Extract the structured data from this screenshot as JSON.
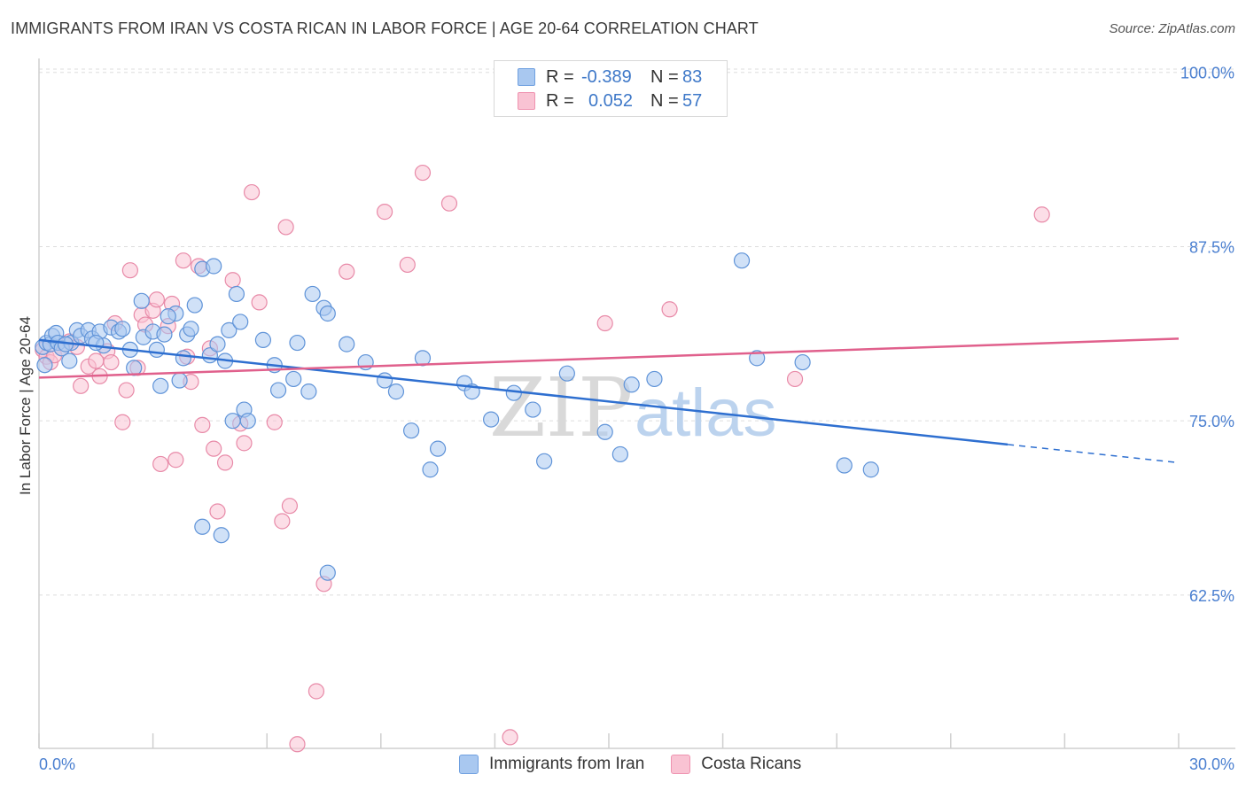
{
  "header": {
    "title": "IMMIGRANTS FROM IRAN VS COSTA RICAN IN LABOR FORCE | AGE 20-64 CORRELATION CHART",
    "source": "Source: ZipAtlas.com"
  },
  "legend_top": {
    "rows": [
      {
        "r_label": "R =",
        "r_value": "-0.389",
        "n_label": "N =",
        "n_value": "83",
        "color": "#a9c8f0",
        "border": "#6fa0e0"
      },
      {
        "r_label": "R =",
        "r_value": "0.052",
        "n_label": "N =",
        "n_value": "57",
        "color": "#f9c3d3",
        "border": "#ef93b0"
      }
    ]
  },
  "watermark": {
    "zip": "ZIP",
    "atlas": "atlas"
  },
  "colors": {
    "blue_fill": "#a9c8f0",
    "blue_edge": "#5f93d8",
    "blue_line": "#2e6fd0",
    "pink_fill": "#f9c3d3",
    "pink_edge": "#e88aa8",
    "pink_line": "#e0608c",
    "tick_text": "#4a7fd0",
    "grid": "#dddddd"
  },
  "chart_data": {
    "type": "scatter",
    "title": "IMMIGRANTS FROM IRAN VS COSTA RICAN IN LABOR FORCE | AGE 20-64 CORRELATION CHART",
    "xlabel": "",
    "ylabel": "In Labor Force | Age 20-64",
    "xlim": [
      0,
      30
    ],
    "ylim": [
      51.5,
      101
    ],
    "x_tick_labels": [
      "0.0%",
      "30.0%"
    ],
    "y_ticks": [
      62.5,
      75.0,
      87.5,
      100.0
    ],
    "y_tick_labels": [
      "62.5%",
      "75.0%",
      "87.5%",
      "100.0%"
    ],
    "grid": true,
    "legend_placement": "bottom-center",
    "series": [
      {
        "name": "Immigrants from Iran",
        "color": "#a9c8f0",
        "trend": {
          "x": [
            0,
            25.5
          ],
          "y": [
            80.8,
            73.3
          ],
          "dashed_to": [
            30,
            72.0
          ]
        },
        "points": [
          [
            0.1,
            80.3
          ],
          [
            0.15,
            79.0
          ],
          [
            0.2,
            80.6
          ],
          [
            0.3,
            80.5
          ],
          [
            0.35,
            81.1
          ],
          [
            0.45,
            81.3
          ],
          [
            0.5,
            80.6
          ],
          [
            0.6,
            80.2
          ],
          [
            0.8,
            79.3
          ],
          [
            0.85,
            80.6
          ],
          [
            1.0,
            81.5
          ],
          [
            1.1,
            81.1
          ],
          [
            1.3,
            81.5
          ],
          [
            1.4,
            80.9
          ],
          [
            1.6,
            81.4
          ],
          [
            1.7,
            80.4
          ],
          [
            1.9,
            81.7
          ],
          [
            2.1,
            81.4
          ],
          [
            2.4,
            80.1
          ],
          [
            2.5,
            78.8
          ],
          [
            2.7,
            83.6
          ],
          [
            2.75,
            81.0
          ],
          [
            3.0,
            81.4
          ],
          [
            3.1,
            80.1
          ],
          [
            3.2,
            77.5
          ],
          [
            3.3,
            81.2
          ],
          [
            3.6,
            82.7
          ],
          [
            3.7,
            77.9
          ],
          [
            3.8,
            79.5
          ],
          [
            3.9,
            81.2
          ],
          [
            4.1,
            83.3
          ],
          [
            4.3,
            85.9
          ],
          [
            4.5,
            79.7
          ],
          [
            4.6,
            86.1
          ],
          [
            4.7,
            80.5
          ],
          [
            4.9,
            79.3
          ],
          [
            5.0,
            81.5
          ],
          [
            5.2,
            84.1
          ],
          [
            5.3,
            82.1
          ],
          [
            5.1,
            75.0
          ],
          [
            5.4,
            75.8
          ],
          [
            5.5,
            75.0
          ],
          [
            6.3,
            77.2
          ],
          [
            6.8,
            80.6
          ],
          [
            6.7,
            78.0
          ],
          [
            7.1,
            77.1
          ],
          [
            7.2,
            84.1
          ],
          [
            7.5,
            83.1
          ],
          [
            7.6,
            82.7
          ],
          [
            8.1,
            80.5
          ],
          [
            8.6,
            79.2
          ],
          [
            9.1,
            77.9
          ],
          [
            9.4,
            77.1
          ],
          [
            9.8,
            74.3
          ],
          [
            10.1,
            79.5
          ],
          [
            10.5,
            73.0
          ],
          [
            10.3,
            71.5
          ],
          [
            11.2,
            77.7
          ],
          [
            11.4,
            77.1
          ],
          [
            11.9,
            75.1
          ],
          [
            12.5,
            77.0
          ],
          [
            13.0,
            75.8
          ],
          [
            13.3,
            72.1
          ],
          [
            13.9,
            78.4
          ],
          [
            14.9,
            74.2
          ],
          [
            15.3,
            72.6
          ],
          [
            15.6,
            77.6
          ],
          [
            16.2,
            78.0
          ],
          [
            4.3,
            67.4
          ],
          [
            4.8,
            66.8
          ],
          [
            7.6,
            64.1
          ],
          [
            18.5,
            86.5
          ],
          [
            18.9,
            79.5
          ],
          [
            20.1,
            79.2
          ],
          [
            21.2,
            71.8
          ],
          [
            21.9,
            71.5
          ],
          [
            0.7,
            80.5
          ],
          [
            1.5,
            80.6
          ],
          [
            2.2,
            81.6
          ],
          [
            3.4,
            82.5
          ],
          [
            4.0,
            81.6
          ],
          [
            5.9,
            80.8
          ],
          [
            6.2,
            79.0
          ]
        ]
      },
      {
        "name": "Costa Ricans",
        "color": "#f9c3d3",
        "trend": {
          "x": [
            0,
            30
          ],
          "y": [
            78.1,
            80.9
          ]
        },
        "points": [
          [
            0.1,
            80.1
          ],
          [
            0.2,
            79.6
          ],
          [
            0.3,
            79.2
          ],
          [
            0.4,
            79.7
          ],
          [
            0.6,
            80.2
          ],
          [
            0.8,
            80.7
          ],
          [
            1.0,
            80.3
          ],
          [
            1.1,
            77.5
          ],
          [
            1.3,
            78.9
          ],
          [
            1.5,
            79.3
          ],
          [
            1.6,
            78.2
          ],
          [
            1.8,
            80.0
          ],
          [
            1.9,
            79.2
          ],
          [
            2.0,
            82.0
          ],
          [
            2.2,
            74.9
          ],
          [
            2.3,
            77.2
          ],
          [
            2.4,
            85.8
          ],
          [
            2.6,
            78.8
          ],
          [
            2.7,
            82.6
          ],
          [
            2.8,
            81.9
          ],
          [
            3.0,
            82.9
          ],
          [
            3.1,
            83.7
          ],
          [
            3.2,
            71.9
          ],
          [
            3.4,
            81.8
          ],
          [
            3.5,
            83.4
          ],
          [
            3.6,
            72.2
          ],
          [
            3.8,
            86.5
          ],
          [
            3.9,
            79.6
          ],
          [
            4.0,
            77.8
          ],
          [
            4.2,
            86.1
          ],
          [
            4.3,
            74.7
          ],
          [
            4.5,
            80.2
          ],
          [
            4.6,
            73.0
          ],
          [
            4.7,
            68.5
          ],
          [
            4.9,
            72.0
          ],
          [
            5.1,
            85.1
          ],
          [
            5.3,
            74.8
          ],
          [
            5.4,
            73.4
          ],
          [
            5.6,
            91.4
          ],
          [
            5.8,
            83.5
          ],
          [
            6.4,
            67.8
          ],
          [
            6.6,
            68.9
          ],
          [
            6.5,
            88.9
          ],
          [
            7.5,
            63.3
          ],
          [
            8.1,
            85.7
          ],
          [
            9.1,
            90.0
          ],
          [
            9.7,
            86.2
          ],
          [
            10.1,
            92.8
          ],
          [
            10.8,
            90.6
          ],
          [
            7.3,
            55.6
          ],
          [
            6.8,
            51.8
          ],
          [
            12.4,
            52.3
          ],
          [
            14.9,
            82.0
          ],
          [
            16.6,
            83.0
          ],
          [
            19.9,
            78.0
          ],
          [
            26.4,
            89.8
          ],
          [
            6.2,
            74.9
          ]
        ]
      }
    ]
  }
}
